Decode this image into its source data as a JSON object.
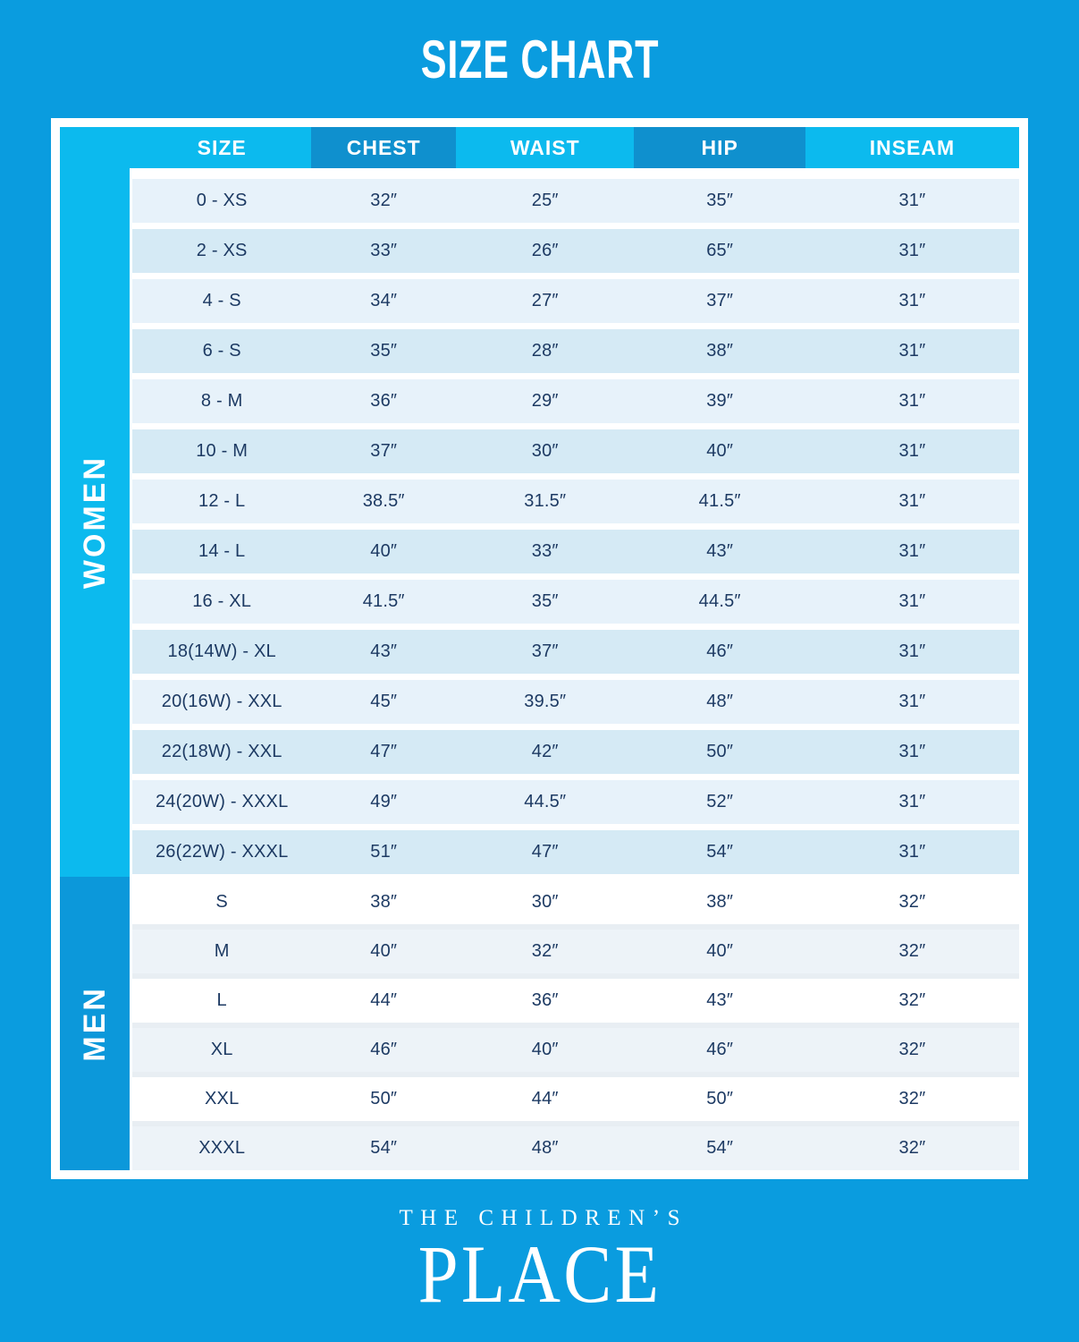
{
  "title": "SIZE CHART",
  "chart_data": {
    "type": "table",
    "title": "SIZE CHART",
    "columns": [
      "SIZE",
      "CHEST",
      "WAIST",
      "HIP",
      "INSEAM"
    ],
    "sections": [
      {
        "label": "WOMEN",
        "rows": [
          [
            "0 - XS",
            "32″",
            "25″",
            "35″",
            "31″"
          ],
          [
            "2 - XS",
            "33″",
            "26″",
            "65″",
            "31″"
          ],
          [
            "4 - S",
            "34″",
            "27″",
            "37″",
            "31″"
          ],
          [
            "6 - S",
            "35″",
            "28″",
            "38″",
            "31″"
          ],
          [
            "8 - M",
            "36″",
            "29″",
            "39″",
            "31″"
          ],
          [
            "10 - M",
            "37″",
            "30″",
            "40″",
            "31″"
          ],
          [
            "12 - L",
            "38.5″",
            "31.5″",
            "41.5″",
            "31″"
          ],
          [
            "14 - L",
            "40″",
            "33″",
            "43″",
            "31″"
          ],
          [
            "16 - XL",
            "41.5″",
            "35″",
            "44.5″",
            "31″"
          ],
          [
            "18(14W) - XL",
            "43″",
            "37″",
            "46″",
            "31″"
          ],
          [
            "20(16W) - XXL",
            "45″",
            "39.5″",
            "48″",
            "31″"
          ],
          [
            "22(18W) - XXL",
            "47″",
            "42″",
            "50″",
            "31″"
          ],
          [
            "24(20W) - XXXL",
            "49″",
            "44.5″",
            "52″",
            "31″"
          ],
          [
            "26(22W) - XXXL",
            "51″",
            "47″",
            "54″",
            "31″"
          ]
        ]
      },
      {
        "label": "MEN",
        "rows": [
          [
            "S",
            "38″",
            "30″",
            "38″",
            "32″"
          ],
          [
            "M",
            "40″",
            "32″",
            "40″",
            "32″"
          ],
          [
            "L",
            "44″",
            "36″",
            "43″",
            "32″"
          ],
          [
            "XL",
            "46″",
            "40″",
            "46″",
            "32″"
          ],
          [
            "XXL",
            "50″",
            "44″",
            "50″",
            "32″"
          ],
          [
            "XXXL",
            "54″",
            "48″",
            "54″",
            "32″"
          ]
        ]
      }
    ]
  },
  "footer": {
    "brand_line1": "THE CHILDREN’S",
    "brand_line2": "PLACE"
  },
  "colors": {
    "background_blue": "#0a9cdf",
    "light_cyan": "#0cbaee",
    "dark_header_blue": "#0f90ce",
    "men_sidebar_blue": "#0c98da",
    "women_row_light": "#e7f2fa",
    "women_row_dark": "#d5eaf5",
    "men_row_light": "#ffffff",
    "men_row_tint": "#edf3f8",
    "data_text_navy": "#1d3a63",
    "white": "#ffffff"
  }
}
